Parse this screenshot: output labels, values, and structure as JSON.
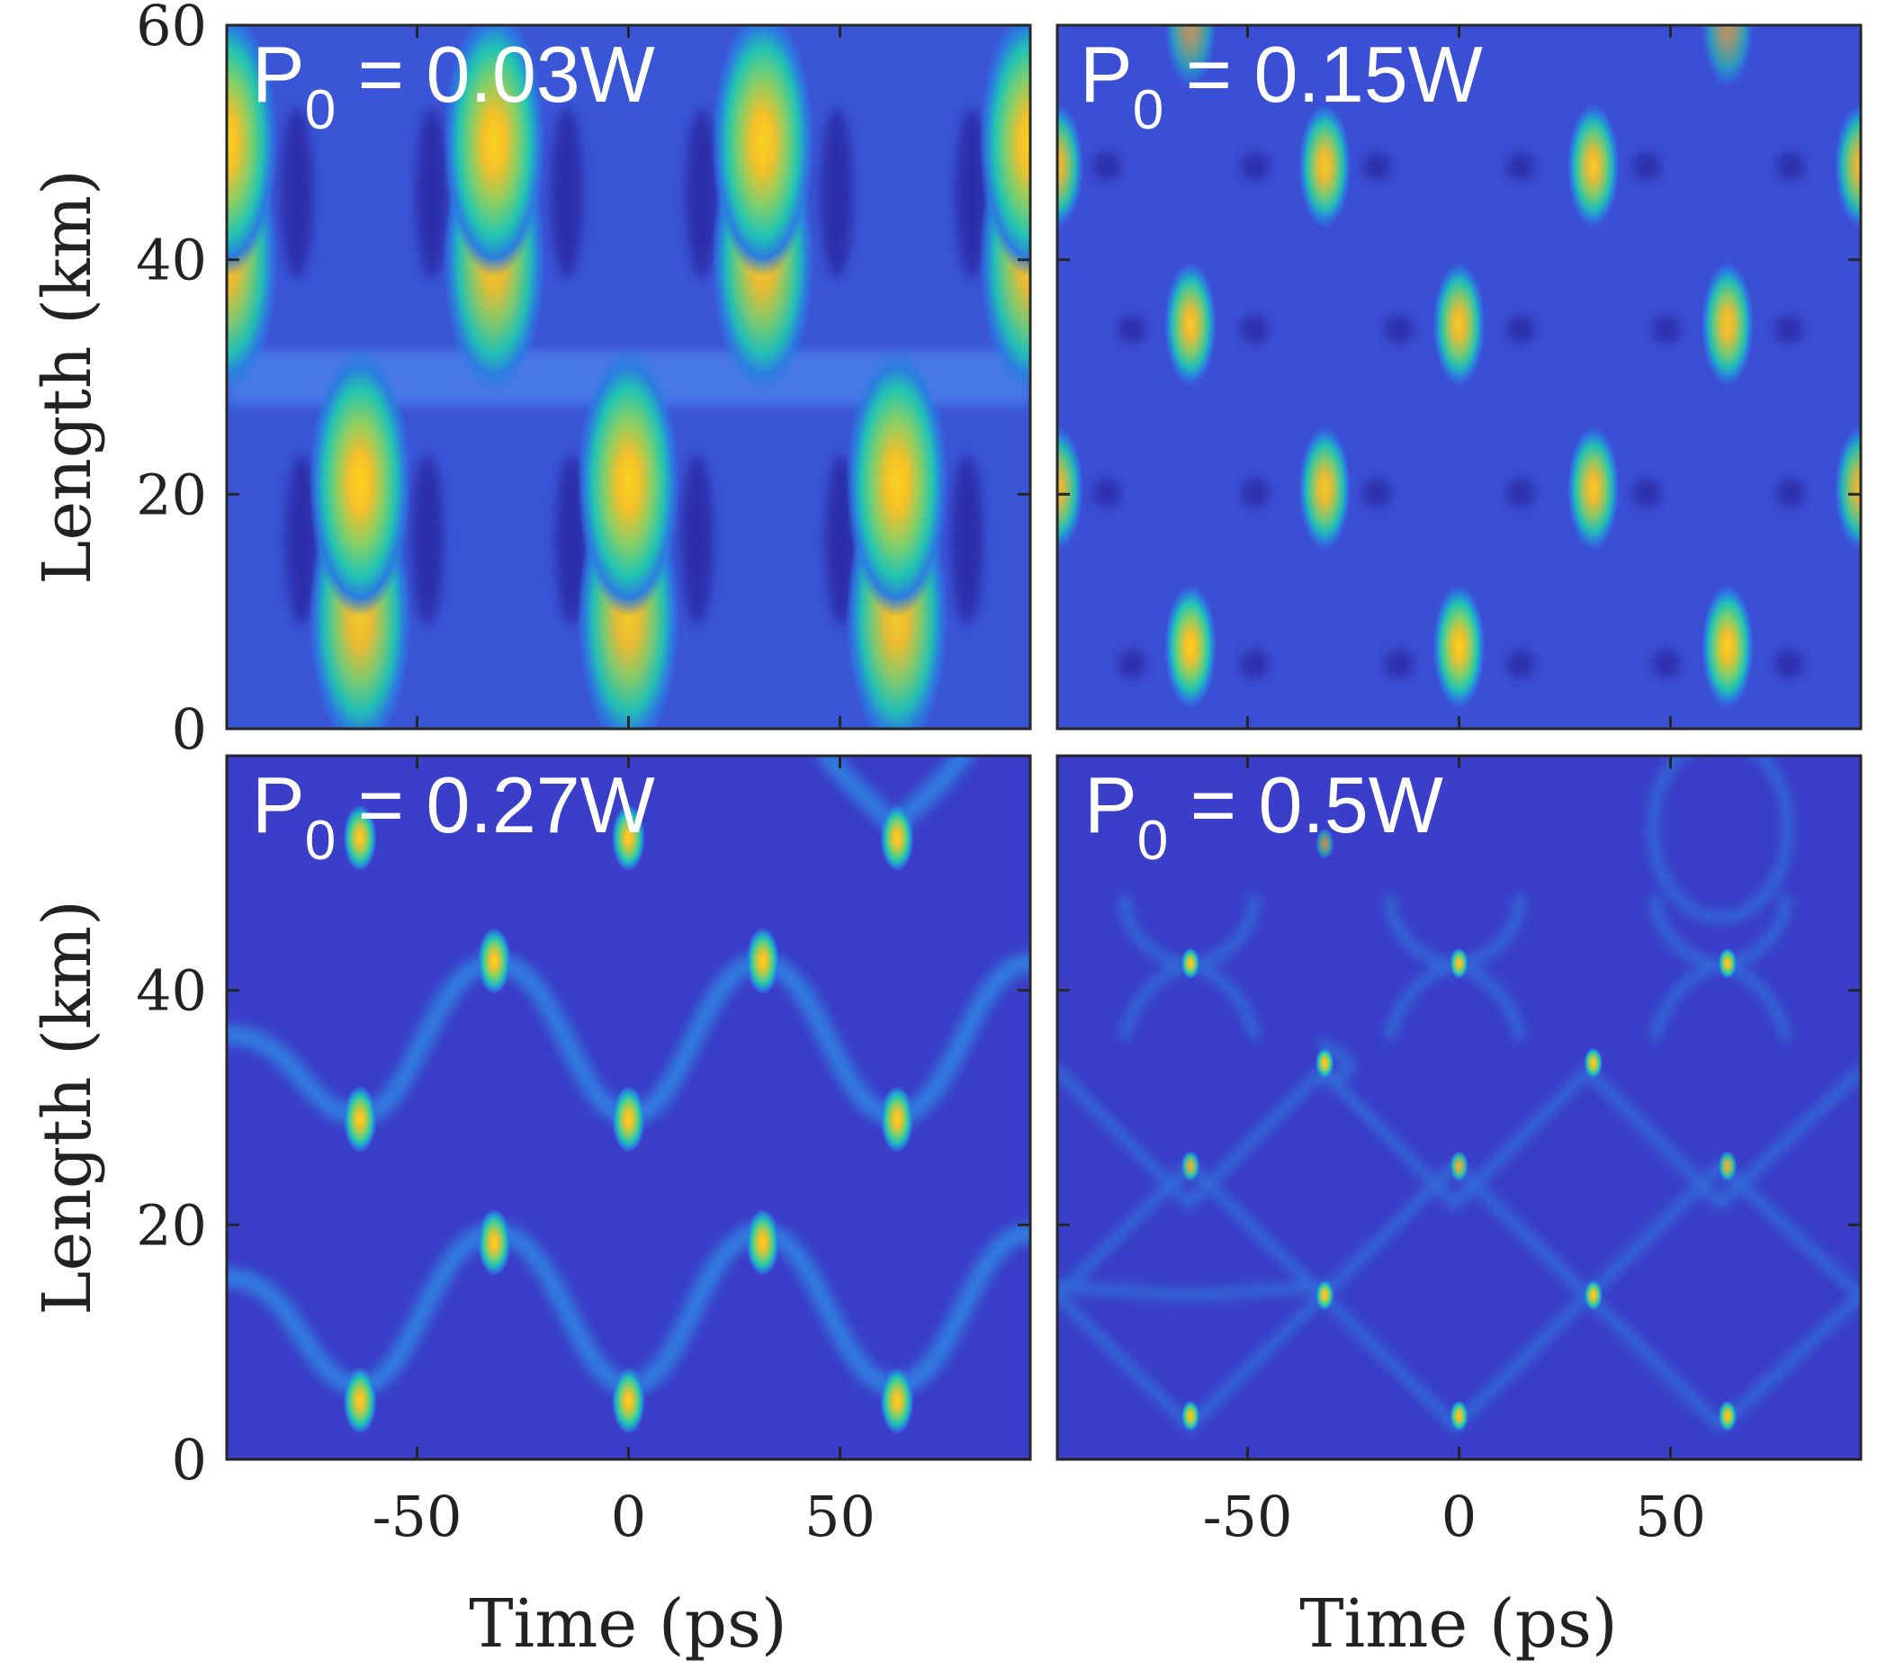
{
  "chart_data": [
    {
      "type": "heatmap",
      "panel": "top-left",
      "label": {
        "symbol": "P",
        "subscript": "0",
        "text": " = 0.03W"
      },
      "xlim": [
        -95,
        95
      ],
      "ylim": [
        0,
        60
      ],
      "xticks": [
        -50,
        0,
        50
      ],
      "xtick_labels": [
        "",
        "",
        ""
      ],
      "yticks": [
        0,
        20,
        40,
        60
      ],
      "ytick_labels": [
        "0",
        "20",
        "40",
        "60"
      ],
      "xlabel": "",
      "ylabel": "Length (km)",
      "blob_period_ps": 63.5,
      "blob_sx_ps": 5.5,
      "blob_sy_km": 5.2,
      "blobs": [
        {
          "x": -95,
          "y": 40,
          "v": 0.95
        },
        {
          "x": -95,
          "y": 50,
          "v": 1.0
        },
        {
          "x": -31.75,
          "y": 40,
          "v": 0.95
        },
        {
          "x": -31.75,
          "y": 50,
          "v": 1.0
        },
        {
          "x": 31.75,
          "y": 40,
          "v": 0.95
        },
        {
          "x": 31.75,
          "y": 50,
          "v": 1.0
        },
        {
          "x": 95,
          "y": 40,
          "v": 0.95
        },
        {
          "x": 95,
          "y": 50,
          "v": 1.0
        },
        {
          "x": -63.5,
          "y": 9.5,
          "v": 0.95
        },
        {
          "x": -63.5,
          "y": 21,
          "v": 1.0
        },
        {
          "x": 0,
          "y": 9.5,
          "v": 0.95
        },
        {
          "x": 0,
          "y": 21,
          "v": 1.0
        },
        {
          "x": 63.5,
          "y": 9.5,
          "v": 0.95
        },
        {
          "x": 63.5,
          "y": 21,
          "v": 1.0
        }
      ]
    },
    {
      "type": "heatmap",
      "panel": "top-right",
      "label": {
        "symbol": "P",
        "subscript": "0",
        "text": " = 0.15W"
      },
      "xlim": [
        -95,
        95
      ],
      "ylim": [
        0,
        60
      ],
      "xticks": [
        -50,
        0,
        50
      ],
      "xtick_labels": [
        "",
        "",
        ""
      ],
      "yticks": [
        0,
        20,
        40,
        60
      ],
      "ytick_labels": [
        "",
        "",
        "",
        ""
      ],
      "xlabel": "",
      "ylabel": "",
      "blob_sx_ps": 2.8,
      "blob_sy_km": 2.4,
      "blobs": [
        {
          "x": -63.5,
          "y": 7,
          "v": 1.0
        },
        {
          "x": 0,
          "y": 7,
          "v": 1.0
        },
        {
          "x": 63.5,
          "y": 7,
          "v": 1.0
        },
        {
          "x": -95,
          "y": 20.5,
          "v": 0.9
        },
        {
          "x": -31.75,
          "y": 20.5,
          "v": 0.95
        },
        {
          "x": 31.75,
          "y": 20.5,
          "v": 0.95
        },
        {
          "x": 95,
          "y": 20.5,
          "v": 0.9
        },
        {
          "x": -63.5,
          "y": 34.5,
          "v": 0.95
        },
        {
          "x": 0,
          "y": 34.5,
          "v": 0.95
        },
        {
          "x": 63.5,
          "y": 34.5,
          "v": 0.95
        },
        {
          "x": -95,
          "y": 48,
          "v": 0.9
        },
        {
          "x": -31.75,
          "y": 48,
          "v": 0.95
        },
        {
          "x": 31.75,
          "y": 48,
          "v": 0.95
        },
        {
          "x": 95,
          "y": 48,
          "v": 0.9
        },
        {
          "x": -63.5,
          "y": 60,
          "v": 0.6
        },
        {
          "x": 63.5,
          "y": 60,
          "v": 0.6
        }
      ]
    },
    {
      "type": "heatmap",
      "panel": "bottom-left",
      "label": {
        "symbol": "P",
        "subscript": "0",
        "text": " = 0.27W"
      },
      "xlim": [
        -95,
        95
      ],
      "ylim": [
        0,
        60
      ],
      "xticks": [
        -50,
        0,
        50
      ],
      "xtick_labels": [
        "-50",
        "0",
        "50"
      ],
      "yticks": [
        0,
        20,
        40,
        60
      ],
      "ytick_labels": [
        "0",
        "20",
        "40",
        ""
      ],
      "xlabel": "Time (ps)",
      "ylabel": "Length (km)",
      "blob_sx_ps": 1.8,
      "blob_sy_km": 1.3,
      "blobs": [
        {
          "x": -63.5,
          "y": 5,
          "v": 1.0
        },
        {
          "x": 0,
          "y": 5,
          "v": 1.0
        },
        {
          "x": 63.5,
          "y": 5,
          "v": 1.0
        },
        {
          "x": -31.75,
          "y": 18.5,
          "v": 1.0
        },
        {
          "x": 31.75,
          "y": 18.5,
          "v": 1.0
        },
        {
          "x": -63.5,
          "y": 29,
          "v": 1.0
        },
        {
          "x": 0,
          "y": 29,
          "v": 1.0
        },
        {
          "x": 63.5,
          "y": 29,
          "v": 1.0
        },
        {
          "x": -31.75,
          "y": 42.5,
          "v": 1.0
        },
        {
          "x": 31.75,
          "y": 42.5,
          "v": 1.0
        },
        {
          "x": -63.5,
          "y": 53,
          "v": 1.0
        },
        {
          "x": 0,
          "y": 53,
          "v": 1.0
        },
        {
          "x": 63.5,
          "y": 53,
          "v": 1.0
        }
      ]
    },
    {
      "type": "heatmap",
      "panel": "bottom-right",
      "label": {
        "symbol": "P",
        "subscript": "0",
        "text": " = 0.5W"
      },
      "xlim": [
        -95,
        95
      ],
      "ylim": [
        0,
        60
      ],
      "xticks": [
        -50,
        0,
        50
      ],
      "xtick_labels": [
        "-50",
        "0",
        "50"
      ],
      "yticks": [
        0,
        20,
        40,
        60
      ],
      "ytick_labels": [
        "",
        "",
        "",
        ""
      ],
      "xlabel": "Time (ps)",
      "ylabel": "",
      "blob_sx_ps": 1.0,
      "blob_sy_km": 0.6,
      "blobs": [
        {
          "x": -63.5,
          "y": 3.7,
          "v": 1.0
        },
        {
          "x": 0,
          "y": 3.7,
          "v": 1.0
        },
        {
          "x": 63.5,
          "y": 3.7,
          "v": 1.0
        },
        {
          "x": -31.75,
          "y": 14,
          "v": 1.0
        },
        {
          "x": 31.75,
          "y": 14,
          "v": 1.0
        },
        {
          "x": -63.5,
          "y": 25,
          "v": 0.85
        },
        {
          "x": 0,
          "y": 25,
          "v": 0.85
        },
        {
          "x": 63.5,
          "y": 25,
          "v": 0.85
        },
        {
          "x": -31.75,
          "y": 33.8,
          "v": 1.0
        },
        {
          "x": 31.75,
          "y": 33.8,
          "v": 1.0
        },
        {
          "x": -63.5,
          "y": 42.3,
          "v": 1.0
        },
        {
          "x": 0,
          "y": 42.3,
          "v": 1.0
        },
        {
          "x": 63.5,
          "y": 42.3,
          "v": 1.0
        },
        {
          "x": -31.75,
          "y": 52.5,
          "v": 0.6
        }
      ]
    }
  ]
}
